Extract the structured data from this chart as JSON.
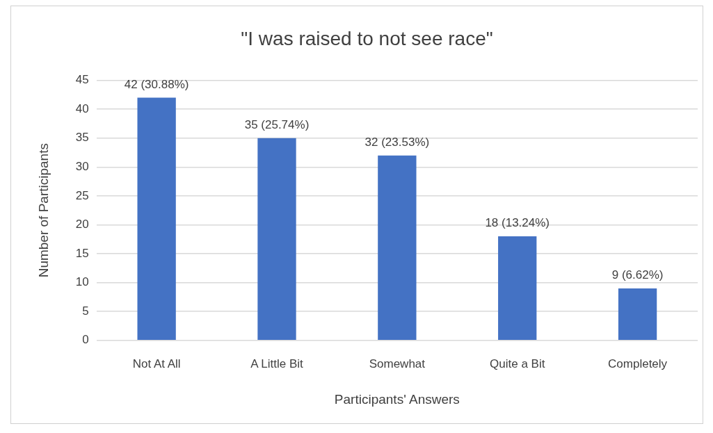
{
  "chart_data": {
    "type": "bar",
    "title": "\"I was raised to not see race\"",
    "xlabel": "Participants' Answers",
    "ylabel": "Number of Participants",
    "categories": [
      "Not At All",
      "A Little Bit",
      "Somewhat",
      "Quite a Bit",
      "Completely"
    ],
    "values": [
      42,
      35,
      32,
      18,
      9
    ],
    "color": "#4472c4",
    "value_labels": [
      "42 (30.88%)",
      "35 (25.74%)",
      "32 (23.53%)",
      "18 (13.24%)",
      "9 (6.62%)"
    ],
    "ylim": [
      0,
      45
    ],
    "yticks": [
      0,
      5,
      10,
      15,
      20,
      25,
      30,
      35,
      40,
      45
    ],
    "grid": "y"
  }
}
